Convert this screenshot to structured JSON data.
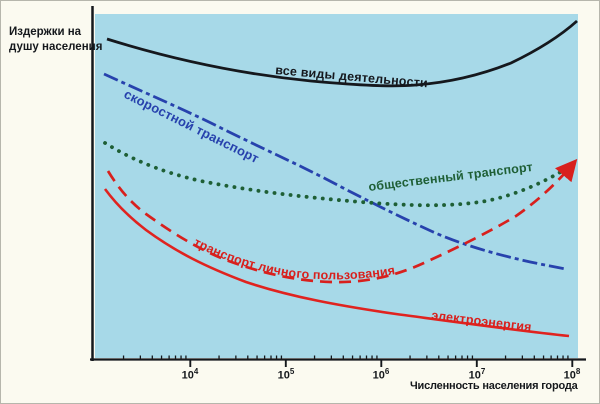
{
  "chart": {
    "y_axis_label": {
      "line1": "Издержки на",
      "line2": "душу населения"
    },
    "x_axis_label": "Численность населения города",
    "x_ticks": [
      {
        "base": "10",
        "exp": "4"
      },
      {
        "base": "10",
        "exp": "5"
      },
      {
        "base": "10",
        "exp": "6"
      },
      {
        "base": "10",
        "exp": "7"
      },
      {
        "base": "10",
        "exp": "8"
      }
    ],
    "curve_labels": {
      "all_activities": "все виды деятельности",
      "rapid_transit": "скоростной транспорт",
      "public_transport": "общественный транспорт",
      "personal_transport": "транспорт личного пользования",
      "electricity": "электроэнергия"
    },
    "colors": {
      "page_background": "#fbfaf0",
      "plot_background": "#a7d9e8",
      "axis": "#15181c",
      "all_activities": "#15181d",
      "rapid_transit": "#2742ad",
      "public_transport": "#1e5f35",
      "personal_transport": "#d8201d",
      "electricity": "#e0231f"
    }
  },
  "chart_data": {
    "type": "line",
    "title": "",
    "xlabel": "Численность населения города",
    "ylabel": "Издержки на душу населения",
    "x_scale": "log",
    "x_range": [
      "1e3",
      "1e8"
    ],
    "x_tick_values": [
      "1e4",
      "1e5",
      "1e6",
      "1e7",
      "1e8"
    ],
    "y_axis_note": "qualitative axis, no numeric ticks; values below are relative per-capita costs estimated as % of axis height",
    "x": [
      "1.3e3",
      "1e4",
      "1e5",
      "1e6",
      "1e7",
      "1e8"
    ],
    "series": [
      {
        "name": "все виды деятельности",
        "color": "black",
        "line_style": "solid",
        "values": [
          93,
          86,
          81,
          79,
          82,
          98
        ]
      },
      {
        "name": "скоростной транспорт",
        "color": "blue",
        "line_style": "dash-dot",
        "values": [
          83,
          71,
          57,
          44,
          32,
          26
        ]
      },
      {
        "name": "общественный транспорт",
        "color": "green",
        "line_style": "dotted",
        "values": [
          63,
          52,
          48,
          45,
          46,
          56
        ]
      },
      {
        "name": "транспорт личного пользования",
        "color": "red",
        "line_style": "dashed",
        "values": [
          54,
          34,
          24,
          23,
          34,
          56
        ],
        "end_arrow": true
      },
      {
        "name": "электроэнергия",
        "color": "red",
        "line_style": "solid",
        "values": [
          49,
          29,
          18,
          13,
          10,
          6
        ]
      }
    ],
    "grid": false,
    "legend": "labels written along curves"
  }
}
